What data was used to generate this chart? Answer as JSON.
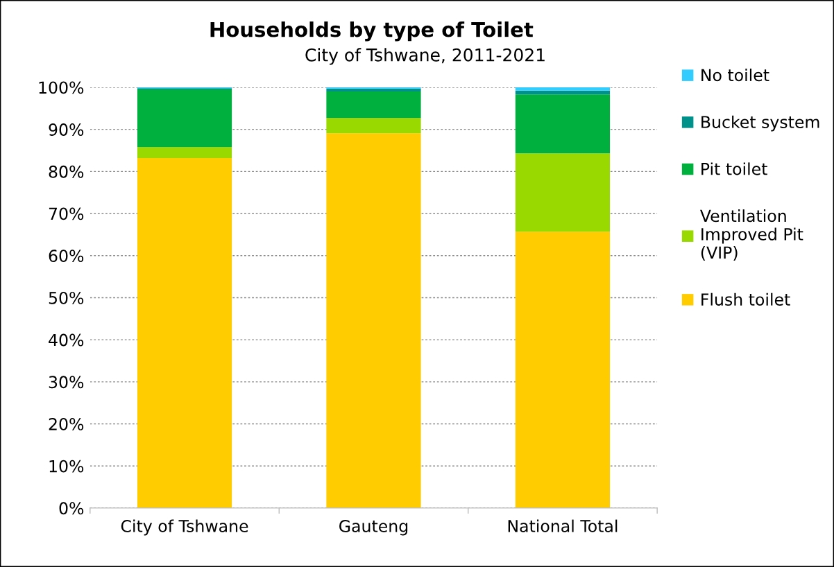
{
  "chart_data": {
    "type": "bar",
    "title": "Households by type of Toilet",
    "subtitle": "City of Tshwane, 2011-2021",
    "categories": [
      "City of Tshwane",
      "Gauteng",
      "National Total"
    ],
    "stacked": true,
    "series": [
      {
        "name": "Flush toilet",
        "color": "#ffcc00",
        "values": [
          83.2,
          89.1,
          65.7
        ]
      },
      {
        "name": "Ventilation Improved Pit (VIP)",
        "color": "#99d900",
        "values": [
          2.6,
          3.6,
          18.6
        ]
      },
      {
        "name": "Pit toilet",
        "color": "#00b03f",
        "values": [
          13.7,
          6.3,
          14.0
        ]
      },
      {
        "name": "Bucket system",
        "color": "#00918a",
        "values": [
          0.3,
          0.7,
          0.9
        ]
      },
      {
        "name": "No toilet",
        "color": "#33ccff",
        "values": [
          0.2,
          0.3,
          0.8
        ]
      }
    ],
    "ylim": [
      0,
      100
    ],
    "yticks": [
      {
        "value": 0,
        "label": "0%"
      },
      {
        "value": 10,
        "label": "10%"
      },
      {
        "value": 20,
        "label": "20%"
      },
      {
        "value": 30,
        "label": "30%"
      },
      {
        "value": 40,
        "label": "40%"
      },
      {
        "value": 50,
        "label": "50%"
      },
      {
        "value": 60,
        "label": "60%"
      },
      {
        "value": 70,
        "label": "70%"
      },
      {
        "value": 80,
        "label": "80%"
      },
      {
        "value": 90,
        "label": "90%"
      },
      {
        "value": 100,
        "label": "100%"
      }
    ],
    "grid": "y",
    "legend": "right"
  }
}
